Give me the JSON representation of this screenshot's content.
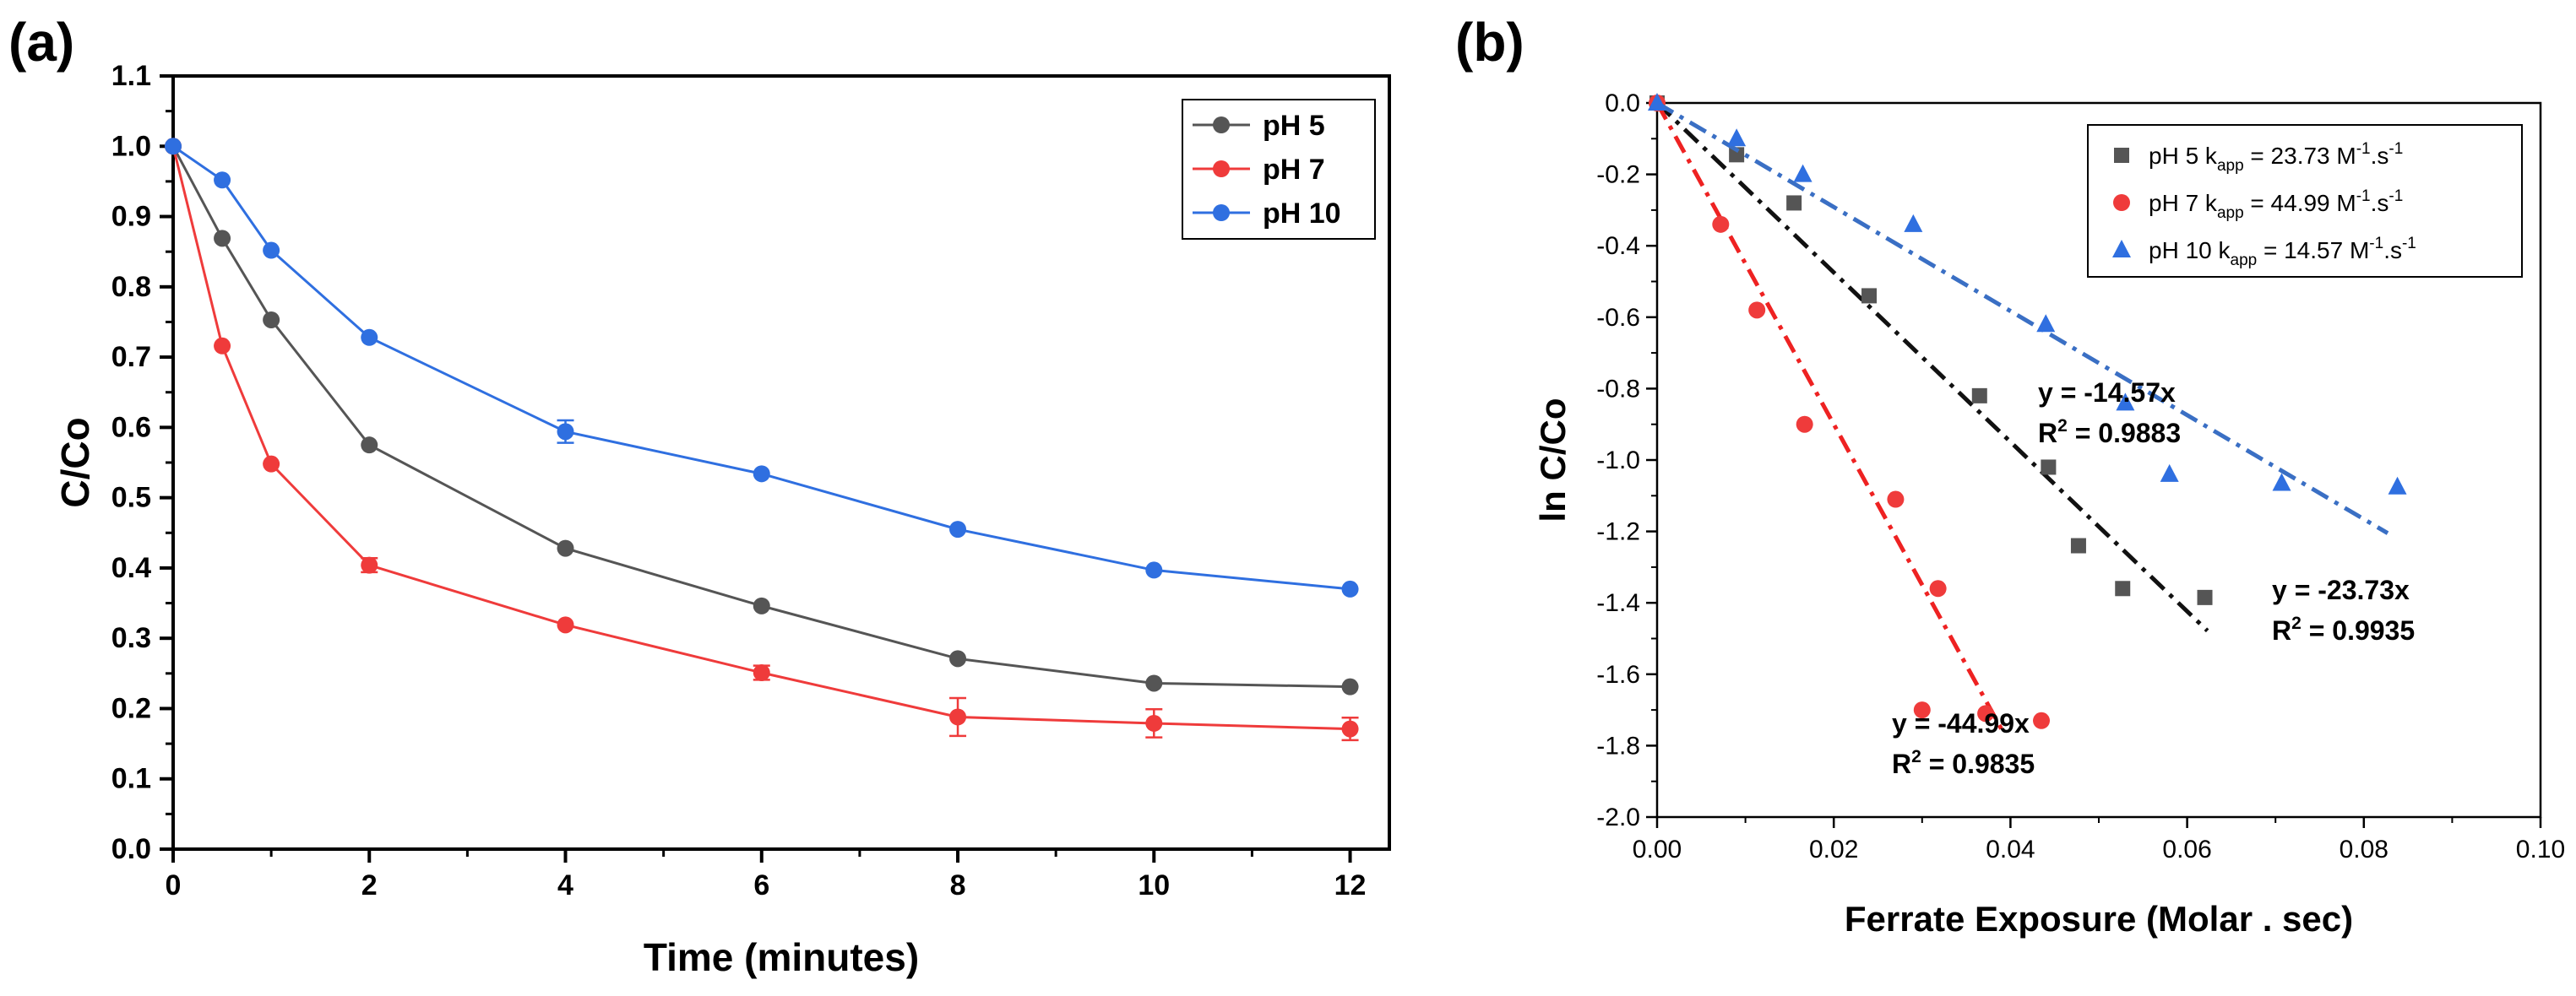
{
  "panel_a_label": "(a)",
  "panel_b_label": "(b)",
  "chart_data": [
    {
      "type": "line",
      "panel": "(a)",
      "xlabel": "Time (minutes)",
      "ylabel": "C/Co",
      "xlim": [
        0,
        12.4
      ],
      "ylim": [
        0,
        1.1
      ],
      "xticks": [
        0,
        2,
        4,
        6,
        8,
        10,
        12
      ],
      "yticks": [
        0.0,
        0.1,
        0.2,
        0.3,
        0.4,
        0.5,
        0.6,
        0.7,
        0.8,
        0.9,
        1.0,
        1.1
      ],
      "x": [
        0,
        0.5,
        1,
        2,
        4,
        6,
        8,
        10,
        12
      ],
      "legend_position": "top-right",
      "series": [
        {
          "name": "pH 5",
          "color": "#555555",
          "marker": "circle",
          "values": [
            1.0,
            0.869,
            0.753,
            0.575,
            0.428,
            0.346,
            0.271,
            0.236,
            0.231
          ],
          "errors": [
            0,
            0,
            0,
            0,
            0,
            0,
            0,
            0,
            0
          ]
        },
        {
          "name": "pH 7",
          "color": "#ef3b3b",
          "marker": "circle",
          "values": [
            1.0,
            0.716,
            0.548,
            0.404,
            0.319,
            0.251,
            0.188,
            0.179,
            0.171
          ],
          "errors": [
            0,
            0,
            0,
            0.01,
            0,
            0.01,
            0.027,
            0.02,
            0.016
          ]
        },
        {
          "name": "pH 10",
          "color": "#2f6fe0",
          "marker": "circle",
          "values": [
            1.0,
            0.952,
            0.852,
            0.728,
            0.594,
            0.534,
            0.455,
            0.397,
            0.37
          ],
          "errors": [
            0,
            0,
            0,
            0,
            0.016,
            0,
            0,
            0,
            0
          ]
        }
      ]
    },
    {
      "type": "scatter",
      "panel": "(b)",
      "xlabel": "Ferrate Exposure (Molar . sec)",
      "ylabel": "ln C/Co",
      "xlim": [
        0,
        0.1
      ],
      "ylim": [
        -2.0,
        0.0
      ],
      "xticks": [
        0.0,
        0.02,
        0.04,
        0.06,
        0.08,
        0.1
      ],
      "yticks": [
        0.0,
        -0.2,
        -0.4,
        -0.6,
        -0.8,
        -1.0,
        -1.2,
        -1.4,
        -1.6,
        -1.8,
        -2.0
      ],
      "legend_position": "top-right",
      "series": [
        {
          "name": "pH 5",
          "legend_prefix": "pH 5 k",
          "legend_sub": "app",
          "legend_mid": " = 23.73 M",
          "legend_sup1": "-1",
          "legend_mid2": ".s",
          "legend_sup2": "-1",
          "color": "#555555",
          "marker": "square",
          "x": [
            0.0,
            0.009,
            0.0155,
            0.024,
            0.0365,
            0.0443,
            0.0477,
            0.0527,
            0.062
          ],
          "y": [
            0.0,
            -0.145,
            -0.28,
            -0.54,
            -0.82,
            -1.02,
            -1.24,
            -1.36,
            -1.385
          ],
          "fit": {
            "slope": -23.73,
            "x_range": [
              0,
              0.0623
            ],
            "line_color": "#111111",
            "equation": "y = -23.73x",
            "r2_label": "R",
            "r2_sup": "2",
            "r2_value": " = 0.9935"
          }
        },
        {
          "name": "pH 7",
          "legend_prefix": "pH 7 k",
          "legend_sub": "app",
          "legend_mid": " = 44.99 M",
          "legend_sup1": "-1",
          "legend_mid2": ".s",
          "legend_sup2": "-1",
          "color": "#ef3b3b",
          "marker": "circle",
          "x": [
            0.0,
            0.0072,
            0.0113,
            0.0167,
            0.027,
            0.0318,
            0.03,
            0.0372,
            0.0435
          ],
          "y": [
            0.0,
            -0.34,
            -0.58,
            -0.9,
            -1.11,
            -1.36,
            -1.7,
            -1.71,
            -1.73
          ],
          "fit": {
            "slope": -44.99,
            "x_range": [
              0,
              0.0392
            ],
            "line_color": "#ee2222",
            "equation": "y = -44.99x",
            "r2_label": "R",
            "r2_sup": "2",
            "r2_value": " = 0.9835"
          }
        },
        {
          "name": "pH 10",
          "legend_prefix": "pH 10 k",
          "legend_sub": "app",
          "legend_mid": " = 14.57 M",
          "legend_sup1": "-1",
          "legend_mid2": ".s",
          "legend_sup2": "-1",
          "color": "#2f6fe0",
          "marker": "triangle",
          "x": [
            0.0,
            0.009,
            0.0165,
            0.029,
            0.044,
            0.053,
            0.058,
            0.0707,
            0.0838
          ],
          "y": [
            0.0,
            -0.1,
            -0.2,
            -0.34,
            -0.62,
            -0.84,
            -1.04,
            -1.065,
            -1.075
          ],
          "fit": {
            "slope": -14.57,
            "x_range": [
              0,
              0.0827
            ],
            "line_color": "#3a6fc4",
            "equation": "y = -14.57x",
            "r2_label": "R",
            "r2_sup": "2",
            "r2_value": " = 0.9883"
          }
        }
      ]
    }
  ]
}
